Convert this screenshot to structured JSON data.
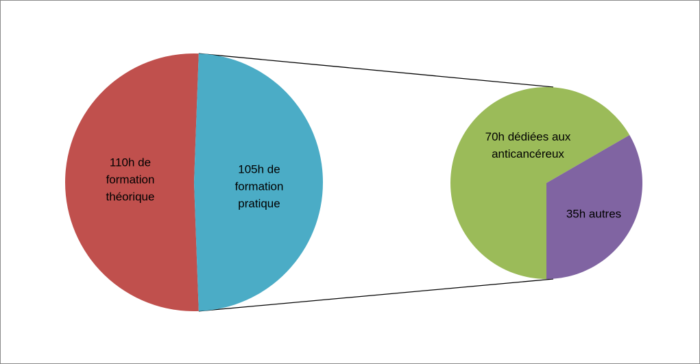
{
  "chart_data": [
    {
      "type": "pie",
      "categories": [
        "110h de formation théorique",
        "105h de formation pratique"
      ],
      "values": [
        110,
        105
      ],
      "colors": [
        "#c0504d",
        "#4bacc6"
      ]
    },
    {
      "type": "pie",
      "categories": [
        "70h dédiées aux anticancéreux",
        "35h autres"
      ],
      "values": [
        70,
        35
      ],
      "colors": [
        "#9bbb59",
        "#8064a2"
      ]
    }
  ]
}
